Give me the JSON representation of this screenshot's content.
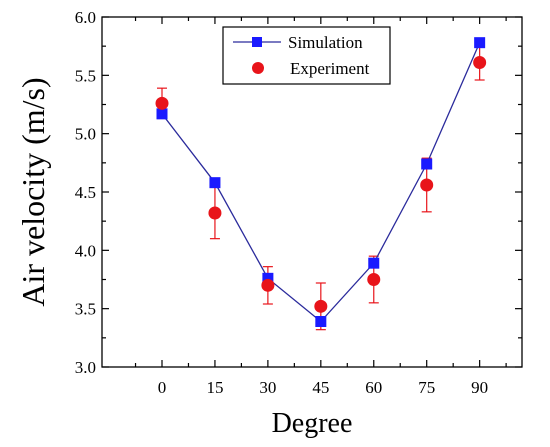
{
  "chart_data": {
    "type": "line",
    "xlabel": "Degree",
    "ylabel": "Air velocity (m/s)",
    "x": [
      0,
      15,
      30,
      45,
      60,
      75,
      90
    ],
    "xlim": [
      -17,
      102
    ],
    "ylim": [
      3.0,
      6.0
    ],
    "x_ticks": [
      "0",
      "15",
      "30",
      "45",
      "60",
      "75",
      "90"
    ],
    "y_ticks": [
      "3.0",
      "3.5",
      "4.0",
      "4.5",
      "5.0",
      "5.5",
      "6.0"
    ],
    "grid": false,
    "legend_position": "top-right",
    "series": [
      {
        "name": "Simulation",
        "marker": "square",
        "line": true,
        "color": "#1a1aff",
        "line_color": "#2b2b9c",
        "values": [
          5.17,
          4.58,
          3.76,
          3.39,
          3.89,
          4.74,
          5.78
        ]
      },
      {
        "name": "Experiment",
        "marker": "circle",
        "line": false,
        "color": "#e8141a",
        "values": [
          5.26,
          4.32,
          3.7,
          3.52,
          3.75,
          4.56,
          5.61
        ],
        "error": [
          0.13,
          0.22,
          0.16,
          0.2,
          0.2,
          0.23,
          0.15
        ]
      }
    ]
  }
}
